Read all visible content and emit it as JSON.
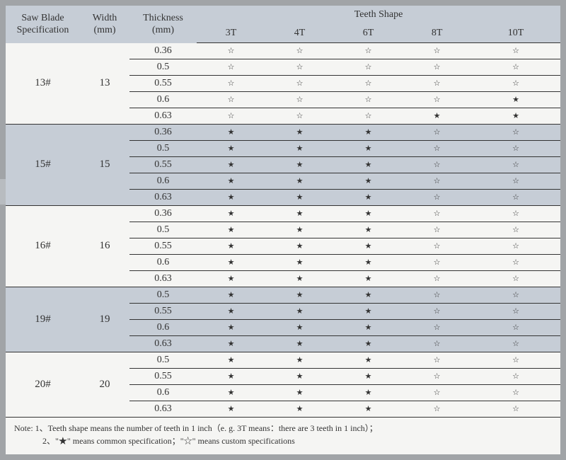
{
  "headers": {
    "spec": "Saw Blade\nSpecification",
    "width": "Width\n(mm)",
    "thickness": "Thickness\n(mm)",
    "teethShape": "Teeth Shape",
    "teeth": [
      "3T",
      "4T",
      "6T",
      "8T",
      "10T"
    ]
  },
  "symbols": {
    "filled": "★",
    "outline": "☆"
  },
  "groups": [
    {
      "spec": "13#",
      "width": "13",
      "shaded": false,
      "rows": [
        {
          "t": "0.36",
          "s": [
            "o",
            "o",
            "o",
            "o",
            "o"
          ]
        },
        {
          "t": "0.5",
          "s": [
            "o",
            "o",
            "o",
            "o",
            "o"
          ]
        },
        {
          "t": "0.55",
          "s": [
            "o",
            "o",
            "o",
            "o",
            "o"
          ]
        },
        {
          "t": "0.6",
          "s": [
            "o",
            "o",
            "o",
            "o",
            "f"
          ]
        },
        {
          "t": "0.63",
          "s": [
            "o",
            "o",
            "o",
            "f",
            "f"
          ]
        }
      ]
    },
    {
      "spec": "15#",
      "width": "15",
      "shaded": true,
      "rows": [
        {
          "t": "0.36",
          "s": [
            "f",
            "f",
            "f",
            "o",
            "o"
          ]
        },
        {
          "t": "0.5",
          "s": [
            "f",
            "f",
            "f",
            "o",
            "o"
          ]
        },
        {
          "t": "0.55",
          "s": [
            "f",
            "f",
            "f",
            "o",
            "o"
          ]
        },
        {
          "t": "0.6",
          "s": [
            "f",
            "f",
            "f",
            "o",
            "o"
          ]
        },
        {
          "t": "0.63",
          "s": [
            "f",
            "f",
            "f",
            "o",
            "o"
          ]
        }
      ]
    },
    {
      "spec": "16#",
      "width": "16",
      "shaded": false,
      "rows": [
        {
          "t": "0.36",
          "s": [
            "f",
            "f",
            "f",
            "o",
            "o"
          ]
        },
        {
          "t": "0.5",
          "s": [
            "f",
            "f",
            "f",
            "o",
            "o"
          ]
        },
        {
          "t": "0.55",
          "s": [
            "f",
            "f",
            "f",
            "o",
            "o"
          ]
        },
        {
          "t": "0.6",
          "s": [
            "f",
            "f",
            "f",
            "o",
            "o"
          ]
        },
        {
          "t": "0.63",
          "s": [
            "f",
            "f",
            "f",
            "o",
            "o"
          ]
        }
      ]
    },
    {
      "spec": "19#",
      "width": "19",
      "shaded": true,
      "rows": [
        {
          "t": "0.5",
          "s": [
            "f",
            "f",
            "f",
            "o",
            "o"
          ]
        },
        {
          "t": "0.55",
          "s": [
            "f",
            "f",
            "f",
            "o",
            "o"
          ]
        },
        {
          "t": "0.6",
          "s": [
            "f",
            "f",
            "f",
            "o",
            "o"
          ]
        },
        {
          "t": "0.63",
          "s": [
            "f",
            "f",
            "f",
            "o",
            "o"
          ]
        }
      ]
    },
    {
      "spec": "20#",
      "width": "20",
      "shaded": false,
      "rows": [
        {
          "t": "0.5",
          "s": [
            "f",
            "f",
            "f",
            "o",
            "o"
          ]
        },
        {
          "t": "0.55",
          "s": [
            "f",
            "f",
            "f",
            "o",
            "o"
          ]
        },
        {
          "t": "0.6",
          "s": [
            "f",
            "f",
            "f",
            "o",
            "o"
          ]
        },
        {
          "t": "0.63",
          "s": [
            "f",
            "f",
            "f",
            "o",
            "o"
          ]
        }
      ]
    }
  ],
  "note": {
    "line1": "Note: 1、Teeth shape means the number of teeth in 1 inch（e. g.  3T    means：there are 3 teeth in 1 inch）；",
    "line2": "2、\"★\" means common specification；\"☆\" means custom specifications"
  },
  "sideTab": "‹"
}
